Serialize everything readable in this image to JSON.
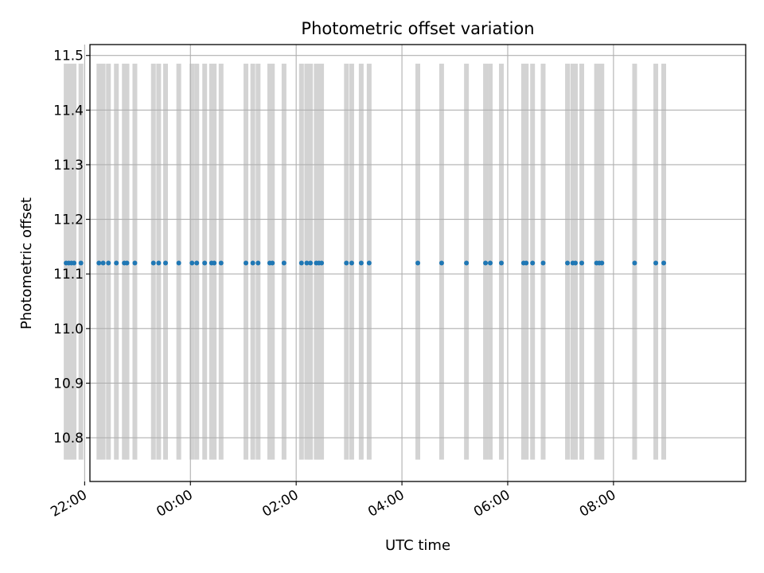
{
  "chart_data": {
    "type": "scatter",
    "title": "Photometric offset variation",
    "xlabel": "UTC time",
    "ylabel": "Photometric offset",
    "x_axis": "time (hours relative to 00:00)",
    "xlim": [
      -1.9,
      10.5
    ],
    "ylim": [
      10.72,
      11.52
    ],
    "x_ticks": [
      {
        "value": -2,
        "label": "22:00"
      },
      {
        "value": 0,
        "label": "00:00"
      },
      {
        "value": 2,
        "label": "02:00"
      },
      {
        "value": 4,
        "label": "04:00"
      },
      {
        "value": 6,
        "label": "06:00"
      },
      {
        "value": 8,
        "label": "08:00"
      }
    ],
    "y_ticks": [
      {
        "value": 10.8,
        "label": "10.8"
      },
      {
        "value": 10.9,
        "label": "10.9"
      },
      {
        "value": 11.0,
        "label": "11.0"
      },
      {
        "value": 11.1,
        "label": "11.1"
      },
      {
        "value": 11.2,
        "label": "11.2"
      },
      {
        "value": 11.3,
        "label": "11.3"
      },
      {
        "value": 11.4,
        "label": "11.4"
      },
      {
        "value": 11.5,
        "label": "11.5"
      }
    ],
    "grid": true,
    "span_range": [
      10.76,
      11.485
    ],
    "span_color": "#d3d3d3",
    "point_color": "#1f77b4",
    "series": [
      {
        "y": 11.12,
        "x": [
          -2.35,
          -2.3,
          -2.25,
          -2.2,
          -2.07,
          -1.73,
          -1.65,
          -1.55,
          -1.4,
          -1.25,
          -1.2,
          -1.05,
          -0.7,
          -0.6,
          -0.47,
          -0.22,
          0.03,
          0.12,
          0.27,
          0.4,
          0.45,
          0.58,
          1.05,
          1.18,
          1.28,
          1.5,
          1.55,
          1.77,
          2.1,
          2.2,
          2.27,
          2.38,
          2.43,
          2.48,
          2.95,
          3.05,
          3.23,
          3.38,
          4.3,
          4.75,
          5.22,
          5.58,
          5.67,
          5.88,
          6.3,
          6.35,
          6.47,
          6.67,
          7.13,
          7.23,
          7.28,
          7.4,
          7.68,
          7.73,
          7.78,
          8.4,
          8.8,
          8.95
        ]
      }
    ]
  }
}
